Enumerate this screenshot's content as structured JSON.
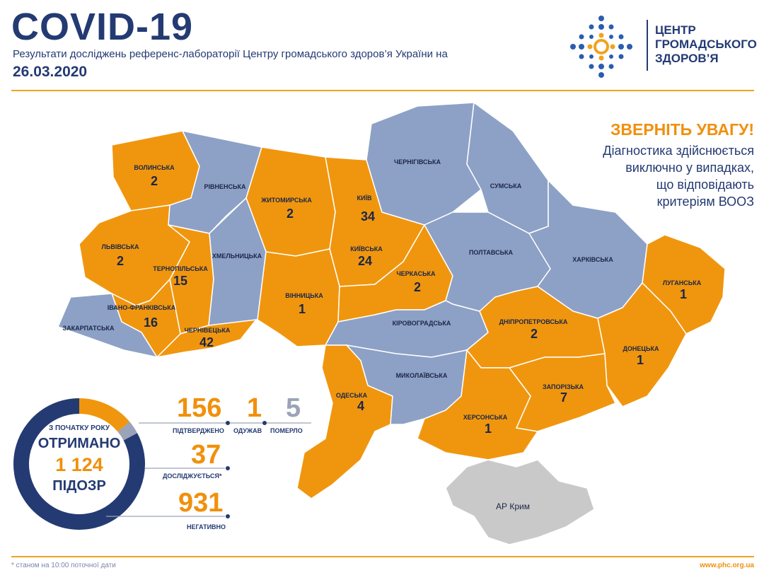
{
  "header": {
    "title": "COVID-19",
    "subtitle": "Результати досліджень референс-лабораторії Центру громадського здоров’я України на",
    "date": "26.03.2020"
  },
  "logo": {
    "lines": [
      "ЦЕНТР",
      "ГРОМАДСЬКОГО",
      "ЗДОРОВ’Я"
    ]
  },
  "notice": {
    "head": "ЗВЕРНІТЬ УВАГУ!",
    "lines": [
      "Діагностика здійснюється",
      "виключно у випадках,",
      "що відповідають",
      "критеріям ВООЗ"
    ]
  },
  "colors": {
    "cases": "#f0960e",
    "no_cases": "#8da1c6",
    "crimea": "#c9c9c9",
    "navy": "#243a73"
  },
  "regions": [
    {
      "name": "ВОЛИНСЬКА",
      "count": "2",
      "status": "cases"
    },
    {
      "name": "РІВНЕНСЬКА",
      "count": "",
      "status": "no_cases"
    },
    {
      "name": "ЖИТОМИРСЬКА",
      "count": "2",
      "status": "cases"
    },
    {
      "name": "КИЇВ",
      "count": "34",
      "status": "cases"
    },
    {
      "name": "КИЇВСЬКА",
      "count": "24",
      "status": "cases"
    },
    {
      "name": "ЧЕРНІГІВСЬКА",
      "count": "",
      "status": "no_cases"
    },
    {
      "name": "СУМСЬКА",
      "count": "",
      "status": "no_cases"
    },
    {
      "name": "ЛЬВІВСЬКА",
      "count": "2",
      "status": "cases"
    },
    {
      "name": "ТЕРНОПІЛЬСЬКА",
      "count": "15",
      "status": "cases"
    },
    {
      "name": "ХМЕЛЬНИЦЬКА",
      "count": "",
      "status": "no_cases"
    },
    {
      "name": "ІВАНО-ФРАНКІВСЬКА",
      "count": "16",
      "status": "cases"
    },
    {
      "name": "ЗАКАРПАТСЬКА",
      "count": "",
      "status": "no_cases"
    },
    {
      "name": "ЧЕРНІВЕЦЬКА",
      "count": "42",
      "status": "cases"
    },
    {
      "name": "ВІННИЦЬКА",
      "count": "1",
      "status": "cases"
    },
    {
      "name": "ЧЕРКАСЬКА",
      "count": "2",
      "status": "cases"
    },
    {
      "name": "ПОЛТАВСЬКА",
      "count": "",
      "status": "no_cases"
    },
    {
      "name": "ХАРКІВСЬКА",
      "count": "",
      "status": "no_cases"
    },
    {
      "name": "ЛУГАНСЬКА",
      "count": "1",
      "status": "cases"
    },
    {
      "name": "КІРОВОГРАДСЬКА",
      "count": "",
      "status": "no_cases"
    },
    {
      "name": "ДНІПРОПЕТРОВСЬКА",
      "count": "2",
      "status": "cases"
    },
    {
      "name": "ДОНЕЦЬКА",
      "count": "1",
      "status": "cases"
    },
    {
      "name": "ОДЕСЬКА",
      "count": "4",
      "status": "cases"
    },
    {
      "name": "МИКОЛАЇВСЬКА",
      "count": "",
      "status": "no_cases"
    },
    {
      "name": "ЗАПОРІЗЬКА",
      "count": "7",
      "status": "cases"
    },
    {
      "name": "ХЕРСОНСЬКА",
      "count": "1",
      "status": "cases"
    },
    {
      "name": "АР Крим",
      "count": "",
      "status": "crimea"
    }
  ],
  "summary": {
    "since": "З ПОЧАТКУ РОКУ",
    "received": "ОТРИМАНО",
    "total": "1 124",
    "suspected": "ПІДОЗР",
    "confirmed": "156",
    "confirmed_label": "ПІДТВЕРДЖЕНО",
    "recovered": "1",
    "recovered_label": "ОДУЖАВ",
    "died": "5",
    "died_label": "ПОМЕРЛО",
    "investigating": "37",
    "investigating_label": "ДОСЛІДЖУЄТЬСЯ*",
    "negative": "931",
    "negative_label": "НЕГАТИВНО",
    "confirmed_share": 0.139,
    "investigating_share": 0.033,
    "negative_share": 0.828
  },
  "footer": {
    "note": "* станом на 10:00 поточної дати",
    "site": "www.phc.org.ua"
  }
}
